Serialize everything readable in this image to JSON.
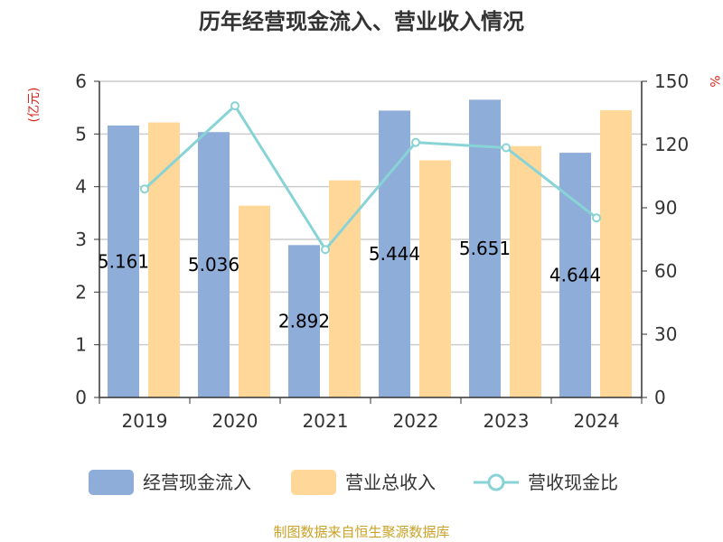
{
  "chart_data": {
    "type": "bar",
    "title": "历年经营现金流入、营业收入情况",
    "categories": [
      "2019",
      "2020",
      "2021",
      "2022",
      "2023",
      "2024"
    ],
    "series": [
      {
        "name": "经营现金流入",
        "kind": "bar",
        "axis": "left",
        "color": "#8eadd9",
        "values": [
          5.161,
          5.036,
          2.892,
          5.444,
          5.651,
          4.644
        ],
        "labels": [
          "5.161",
          "5.036",
          "2.892",
          "5.444",
          "5.651",
          "4.644"
        ]
      },
      {
        "name": "营业总收入",
        "kind": "bar",
        "axis": "left",
        "color": "#ffd899",
        "values": [
          5.22,
          3.64,
          4.12,
          4.5,
          4.77,
          5.45
        ]
      },
      {
        "name": "营收现金比",
        "kind": "line",
        "axis": "right",
        "color": "#88d3d6",
        "values": [
          98.9,
          138.4,
          70.2,
          121.0,
          118.5,
          85.2
        ]
      }
    ],
    "yleft": {
      "label": "(亿元)",
      "min": 0,
      "max": 6,
      "ticks": [
        "0",
        "1",
        "2",
        "3",
        "4",
        "5",
        "6"
      ]
    },
    "yright": {
      "label": "%",
      "min": 0,
      "max": 150,
      "ticks": [
        "0",
        "30",
        "60",
        "90",
        "120",
        "150"
      ]
    },
    "grid": true,
    "legend_position": "bottom"
  },
  "source": "制图数据来自恒生聚源数据库"
}
